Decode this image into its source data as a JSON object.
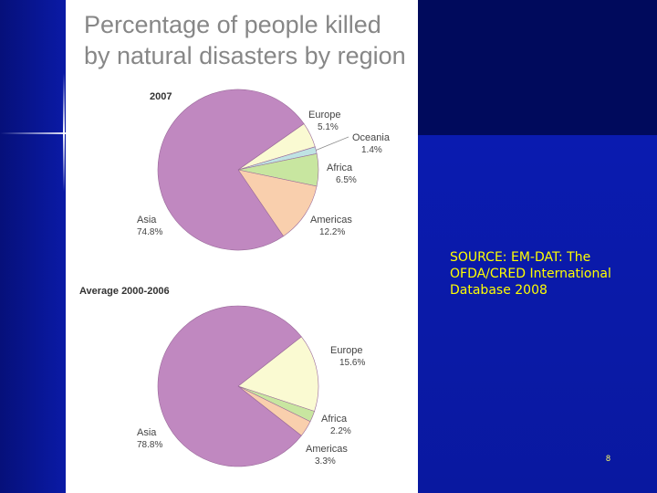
{
  "slide": {
    "source_text": "SOURCE: EM-DAT: The OFDA/CRED International Database 2008",
    "page_number": "8"
  },
  "colors": {
    "Asia": "#c088c0",
    "Europe": "#fafad2",
    "Oceania": "#bfe3e3",
    "Africa": "#c8e6a0",
    "Americas": "#f9cfad"
  },
  "chart_data": [
    {
      "type": "pie",
      "title": "Percentage of people killed by natural disasters by region",
      "subtitle": "2007",
      "slices": [
        {
          "label": "Europe",
          "value": 5.1,
          "value_label": "5.1%"
        },
        {
          "label": "Oceania",
          "value": 1.4,
          "value_label": "1.4%"
        },
        {
          "label": "Africa",
          "value": 6.5,
          "value_label": "6.5%"
        },
        {
          "label": "Americas",
          "value": 12.2,
          "value_label": "12.2%"
        },
        {
          "label": "Asia",
          "value": 74.8,
          "value_label": "74.8%"
        }
      ]
    },
    {
      "type": "pie",
      "subtitle": "Average 2000-2006",
      "slices": [
        {
          "label": "Europe",
          "value": 15.6,
          "value_label": "15.6%"
        },
        {
          "label": "Africa",
          "value": 2.2,
          "value_label": "2.2%"
        },
        {
          "label": "Americas",
          "value": 3.3,
          "value_label": "3.3%"
        },
        {
          "label": "Asia",
          "value": 78.8,
          "value_label": "78.8%"
        }
      ]
    }
  ]
}
